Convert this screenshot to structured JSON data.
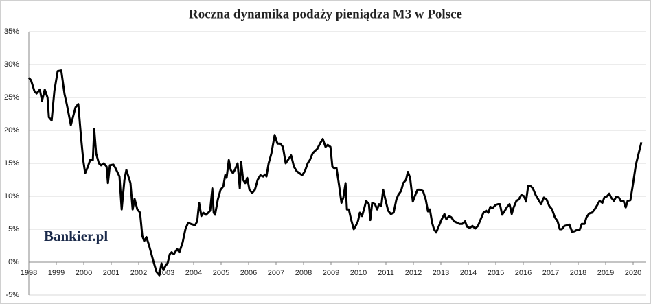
{
  "chart_data": {
    "type": "line",
    "title": "Roczna dynamika podaży pieniądza M3 w Polsce",
    "watermark": "Bankier.pl",
    "x": [
      1998.0,
      1998.08,
      1998.2,
      1998.28,
      1998.4,
      1998.48,
      1998.58,
      1998.68,
      1998.73,
      1998.83,
      1998.93,
      1999.05,
      1999.18,
      1999.3,
      1999.38,
      1999.53,
      1999.7,
      1999.8,
      1999.9,
      1999.98,
      2000.05,
      2000.15,
      2000.23,
      2000.33,
      2000.38,
      2000.45,
      2000.55,
      2000.63,
      2000.73,
      2000.83,
      2000.88,
      2000.95,
      2001.08,
      2001.15,
      2001.3,
      2001.38,
      2001.48,
      2001.55,
      2001.7,
      2001.78,
      2001.85,
      2001.95,
      2002.05,
      2002.13,
      2002.2,
      2002.28,
      2002.38,
      2002.53,
      2002.65,
      2002.75,
      2002.83,
      2002.9,
      2002.98,
      2003.05,
      2003.13,
      2003.2,
      2003.28,
      2003.4,
      2003.48,
      2003.6,
      2003.7,
      2003.8,
      2003.9,
      2004.05,
      2004.13,
      2004.2,
      2004.28,
      2004.35,
      2004.45,
      2004.53,
      2004.6,
      2004.68,
      2004.73,
      2004.78,
      2004.88,
      2004.98,
      2005.08,
      2005.15,
      2005.2,
      2005.28,
      2005.35,
      2005.43,
      2005.5,
      2005.6,
      2005.68,
      2005.73,
      2005.8,
      2005.88,
      2005.95,
      2006.03,
      2006.13,
      2006.23,
      2006.33,
      2006.43,
      2006.53,
      2006.6,
      2006.65,
      2006.73,
      2006.83,
      2006.95,
      2007.05,
      2007.15,
      2007.25,
      2007.35,
      2007.43,
      2007.55,
      2007.65,
      2007.75,
      2007.85,
      2007.95,
      2008.05,
      2008.15,
      2008.23,
      2008.33,
      2008.4,
      2008.5,
      2008.6,
      2008.7,
      2008.8,
      2008.88,
      2008.98,
      2009.05,
      2009.13,
      2009.2,
      2009.3,
      2009.38,
      2009.45,
      2009.53,
      2009.58,
      2009.65,
      2009.73,
      2009.83,
      2009.9,
      2009.98,
      2010.05,
      2010.13,
      2010.2,
      2010.28,
      2010.38,
      2010.43,
      2010.5,
      2010.6,
      2010.68,
      2010.75,
      2010.83,
      2010.9,
      2010.98,
      2011.08,
      2011.18,
      2011.28,
      2011.38,
      2011.45,
      2011.55,
      2011.63,
      2011.73,
      2011.8,
      2011.88,
      2011.98,
      2012.05,
      2012.15,
      2012.25,
      2012.35,
      2012.45,
      2012.53,
      2012.6,
      2012.68,
      2012.75,
      2012.83,
      2012.93,
      2013.03,
      2013.13,
      2013.2,
      2013.3,
      2013.38,
      2013.48,
      2013.58,
      2013.68,
      2013.78,
      2013.88,
      2013.95,
      2014.05,
      2014.15,
      2014.25,
      2014.35,
      2014.45,
      2014.55,
      2014.65,
      2014.73,
      2014.8,
      2014.88,
      2015.0,
      2015.08,
      2015.15,
      2015.23,
      2015.33,
      2015.4,
      2015.5,
      2015.58,
      2015.65,
      2015.75,
      2015.83,
      2015.93,
      2016.03,
      2016.1,
      2016.18,
      2016.28,
      2016.35,
      2016.45,
      2016.55,
      2016.65,
      2016.75,
      2016.85,
      2016.95,
      2017.05,
      2017.15,
      2017.25,
      2017.33,
      2017.4,
      2017.5,
      2017.6,
      2017.68,
      2017.78,
      2017.88,
      2017.95,
      2018.05,
      2018.13,
      2018.23,
      2018.3,
      2018.4,
      2018.5,
      2018.6,
      2018.7,
      2018.78,
      2018.88,
      2018.95,
      2019.05,
      2019.13,
      2019.2,
      2019.3,
      2019.38,
      2019.48,
      2019.55,
      2019.65,
      2019.73,
      2019.8,
      2019.9,
      2020.0,
      2020.1,
      2020.2,
      2020.3
    ],
    "series": [
      {
        "color": "#000000",
        "values": [
          28,
          27.6,
          26,
          25.6,
          26.2,
          24.5,
          26.2,
          25,
          22,
          21.5,
          26,
          29,
          29.1,
          25.5,
          24,
          20.8,
          23.5,
          24,
          19,
          15.5,
          13.5,
          14.5,
          15.5,
          15.5,
          20.2,
          16.5,
          15,
          14.7,
          15,
          14.5,
          12,
          14.7,
          14.8,
          14.3,
          13,
          8,
          12.5,
          14,
          12,
          8,
          9.6,
          8,
          7.5,
          4,
          3.2,
          3.8,
          2.5,
          0.2,
          -1.5,
          -2,
          -0.2,
          -1.2,
          -0.5,
          -0.2,
          1.2,
          1.5,
          1.2,
          2,
          1.5,
          3,
          5,
          6,
          5.8,
          5.6,
          6.2,
          9,
          7,
          7.5,
          7.2,
          7.5,
          7.8,
          11.2,
          7.5,
          7.2,
          9.5,
          11,
          11.5,
          13.2,
          12.8,
          15.5,
          14,
          13.5,
          14,
          15,
          11.2,
          15.2,
          12.5,
          12,
          12.8,
          11,
          10.5,
          11,
          12.5,
          13.2,
          13,
          13.3,
          13,
          15,
          16.5,
          19.3,
          18,
          18,
          17.5,
          15,
          15.5,
          16.2,
          14.5,
          13.8,
          13.5,
          13.2,
          13.8,
          15,
          15.5,
          16.5,
          16.8,
          17.2,
          18,
          18.7,
          17.5,
          17.8,
          17.5,
          14.5,
          14.2,
          14.3,
          11.5,
          9,
          9.8,
          12,
          8,
          8,
          6.5,
          5,
          5.5,
          6.2,
          7.5,
          7,
          8,
          9.3,
          8.8,
          6.4,
          9,
          8.8,
          8,
          8.8,
          8.5,
          11,
          9.5,
          7.8,
          7.3,
          7.5,
          9.5,
          10.2,
          10.8,
          12,
          12.5,
          13.7,
          12.8,
          9.2,
          10,
          11,
          11,
          10.8,
          9.5,
          7.7,
          8,
          6,
          5,
          4.5,
          5.5,
          6.5,
          7.3,
          6.5,
          7,
          6.8,
          6.2,
          6,
          5.8,
          5.8,
          6.2,
          5.4,
          5.2,
          5.5,
          5.1,
          5.5,
          6.5,
          7.5,
          7.8,
          7.5,
          8.4,
          8.2,
          8.7,
          8.8,
          8.8,
          7.2,
          7.8,
          8.3,
          8.8,
          7.3,
          8.3,
          9.3,
          9.5,
          10.2,
          10,
          9.2,
          11.6,
          11.5,
          11.2,
          10.2,
          9.5,
          8.8,
          9.8,
          9.5,
          8.5,
          8,
          6.8,
          6.2,
          5,
          5,
          5.5,
          5.6,
          5.7,
          4.6,
          4.7,
          4.9,
          4.9,
          5.8,
          5.8,
          6.8,
          7.4,
          7.5,
          8,
          8.7,
          9.3,
          9,
          9.8,
          10,
          10.4,
          9.8,
          9.3,
          9.9,
          9.8,
          9.3,
          9.3,
          8.3,
          9.3,
          9.4,
          12,
          14.8,
          16.5,
          18.2
        ]
      }
    ],
    "xlim": [
      1998,
      2020.45
    ],
    "xticks": [
      1998,
      1999,
      2000,
      2001,
      2002,
      2003,
      2004,
      2005,
      2006,
      2007,
      2008,
      2009,
      2010,
      2011,
      2012,
      2013,
      2014,
      2015,
      2016,
      2017,
      2018,
      2019,
      2020
    ],
    "ylim": [
      -5,
      35
    ],
    "yticks": [
      {
        "value": -5,
        "label": "-5%"
      },
      {
        "value": 0,
        "label": "0%"
      },
      {
        "value": 5,
        "label": "5%"
      },
      {
        "value": 10,
        "label": "10%"
      },
      {
        "value": 15,
        "label": "15%"
      },
      {
        "value": 20,
        "label": "20%"
      },
      {
        "value": 25,
        "label": "25%"
      },
      {
        "value": 30,
        "label": "30%"
      },
      {
        "value": 35,
        "label": "35%"
      }
    ],
    "grid": true
  }
}
